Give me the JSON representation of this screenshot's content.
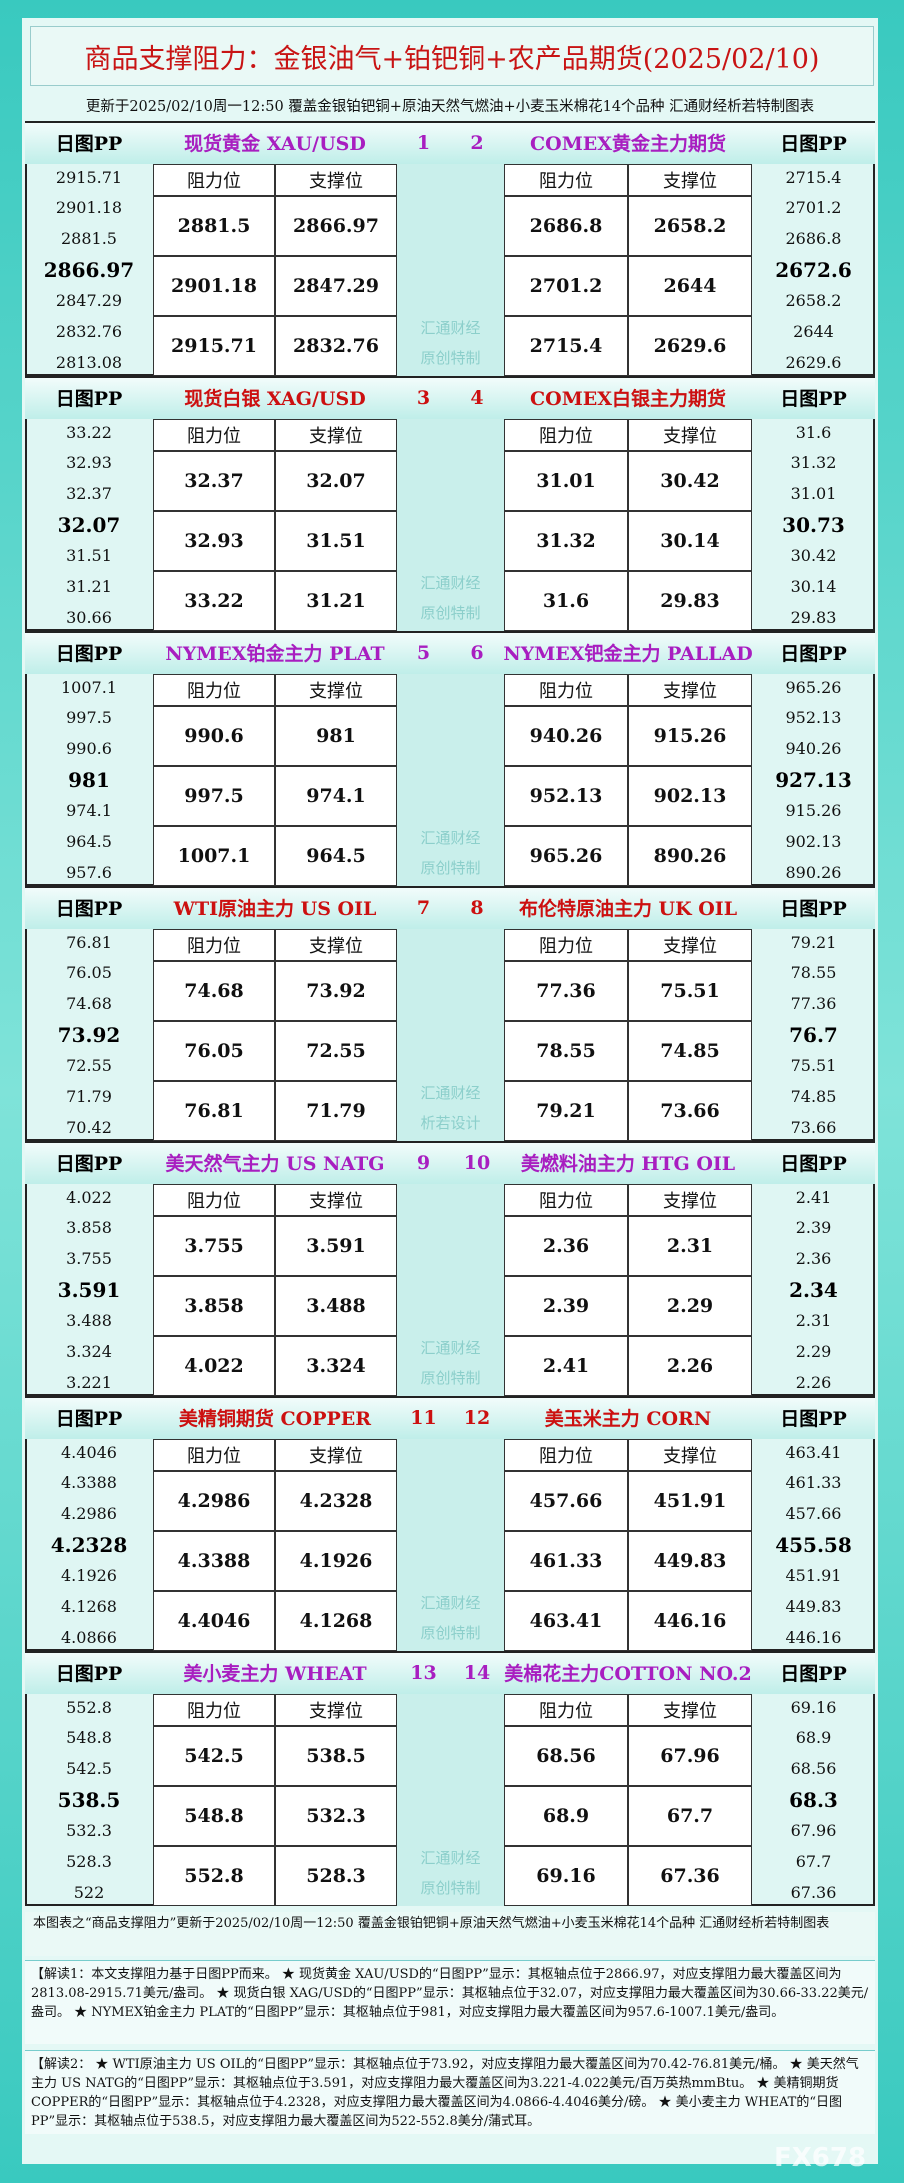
{
  "header": {
    "title": "商品支撑阻力：金银油气+铂钯铜+农产品期货(2025/02/10)",
    "subtitle": "更新于2025/02/10周一12:50 覆盖金银铂钯铜+原油天然气燃油+小麦玉米棉花14个品种 汇通财经析若特制图表"
  },
  "labels": {
    "pp": "日图PP",
    "resistance": "阻力位",
    "support": "支撑位"
  },
  "blocks": [
    {
      "color": "#a81ec0",
      "watermark": [
        "汇通财经",
        "原创特制"
      ],
      "left": {
        "name": "现货黄金 XAU/USD",
        "number": "1",
        "pp": [
          "2915.71",
          "2901.18",
          "2881.5",
          "2866.97",
          "2847.29",
          "2832.76",
          "2813.08"
        ],
        "rows": [
          [
            "2881.5",
            "2866.97"
          ],
          [
            "2901.18",
            "2847.29"
          ],
          [
            "2915.71",
            "2832.76"
          ]
        ]
      },
      "right": {
        "name": "COMEX黄金主力期货",
        "number": "2",
        "pp": [
          "2715.4",
          "2701.2",
          "2686.8",
          "2672.6",
          "2658.2",
          "2644",
          "2629.6"
        ],
        "rows": [
          [
            "2686.8",
            "2658.2"
          ],
          [
            "2701.2",
            "2644"
          ],
          [
            "2715.4",
            "2629.6"
          ]
        ]
      }
    },
    {
      "color": "#cc1010",
      "watermark": [
        "汇通财经",
        "原创特制"
      ],
      "left": {
        "name": "现货白银 XAG/USD",
        "number": "3",
        "pp": [
          "33.22",
          "32.93",
          "32.37",
          "32.07",
          "31.51",
          "31.21",
          "30.66"
        ],
        "rows": [
          [
            "32.37",
            "32.07"
          ],
          [
            "32.93",
            "31.51"
          ],
          [
            "33.22",
            "31.21"
          ]
        ]
      },
      "right": {
        "name": "COMEX白银主力期货",
        "number": "4",
        "pp": [
          "31.6",
          "31.32",
          "31.01",
          "30.73",
          "30.42",
          "30.14",
          "29.83"
        ],
        "rows": [
          [
            "31.01",
            "30.42"
          ],
          [
            "31.32",
            "30.14"
          ],
          [
            "31.6",
            "29.83"
          ]
        ]
      }
    },
    {
      "color": "#a81ec0",
      "watermark": [
        "汇通财经",
        "原创特制"
      ],
      "left": {
        "name": "NYMEX铂金主力 PLAT",
        "number": "5",
        "pp": [
          "1007.1",
          "997.5",
          "990.6",
          "981",
          "974.1",
          "964.5",
          "957.6"
        ],
        "rows": [
          [
            "990.6",
            "981"
          ],
          [
            "997.5",
            "974.1"
          ],
          [
            "1007.1",
            "964.5"
          ]
        ]
      },
      "right": {
        "name": "NYMEX钯金主力 PALLAD",
        "number": "6",
        "pp": [
          "965.26",
          "952.13",
          "940.26",
          "927.13",
          "915.26",
          "902.13",
          "890.26"
        ],
        "rows": [
          [
            "940.26",
            "915.26"
          ],
          [
            "952.13",
            "902.13"
          ],
          [
            "965.26",
            "890.26"
          ]
        ]
      }
    },
    {
      "color": "#cc1010",
      "watermark": [
        "汇通财经",
        "析若设计"
      ],
      "left": {
        "name": "WTI原油主力 US OIL",
        "number": "7",
        "pp": [
          "76.81",
          "76.05",
          "74.68",
          "73.92",
          "72.55",
          "71.79",
          "70.42"
        ],
        "rows": [
          [
            "74.68",
            "73.92"
          ],
          [
            "76.05",
            "72.55"
          ],
          [
            "76.81",
            "71.79"
          ]
        ]
      },
      "right": {
        "name": "布伦特原油主力 UK OIL",
        "number": "8",
        "pp": [
          "79.21",
          "78.55",
          "77.36",
          "76.7",
          "75.51",
          "74.85",
          "73.66"
        ],
        "rows": [
          [
            "77.36",
            "75.51"
          ],
          [
            "78.55",
            "74.85"
          ],
          [
            "79.21",
            "73.66"
          ]
        ]
      }
    },
    {
      "color": "#a81ec0",
      "watermark": [
        "汇通财经",
        "原创特制"
      ],
      "left": {
        "name": "美天然气主力 US NATG",
        "number": "9",
        "pp": [
          "4.022",
          "3.858",
          "3.755",
          "3.591",
          "3.488",
          "3.324",
          "3.221"
        ],
        "rows": [
          [
            "3.755",
            "3.591"
          ],
          [
            "3.858",
            "3.488"
          ],
          [
            "4.022",
            "3.324"
          ]
        ]
      },
      "right": {
        "name": "美燃料油主力 HTG OIL",
        "number": "10",
        "pp": [
          "2.41",
          "2.39",
          "2.36",
          "2.34",
          "2.31",
          "2.29",
          "2.26"
        ],
        "rows": [
          [
            "2.36",
            "2.31"
          ],
          [
            "2.39",
            "2.29"
          ],
          [
            "2.41",
            "2.26"
          ]
        ]
      }
    },
    {
      "color": "#cc1010",
      "watermark": [
        "汇通财经",
        "原创特制"
      ],
      "left": {
        "name": "美精铜期货 COPPER",
        "number": "11",
        "pp": [
          "4.4046",
          "4.3388",
          "4.2986",
          "4.2328",
          "4.1926",
          "4.1268",
          "4.0866"
        ],
        "rows": [
          [
            "4.2986",
            "4.2328"
          ],
          [
            "4.3388",
            "4.1926"
          ],
          [
            "4.4046",
            "4.1268"
          ]
        ]
      },
      "right": {
        "name": "美玉米主力 CORN",
        "number": "12",
        "pp": [
          "463.41",
          "461.33",
          "457.66",
          "455.58",
          "451.91",
          "449.83",
          "446.16"
        ],
        "rows": [
          [
            "457.66",
            "451.91"
          ],
          [
            "461.33",
            "449.83"
          ],
          [
            "463.41",
            "446.16"
          ]
        ]
      }
    },
    {
      "color": "#a81ec0",
      "watermark": [
        "汇通财经",
        "原创特制"
      ],
      "left": {
        "name": "美小麦主力 WHEAT",
        "number": "13",
        "pp": [
          "552.8",
          "548.8",
          "542.5",
          "538.5",
          "532.3",
          "528.3",
          "522"
        ],
        "rows": [
          [
            "542.5",
            "538.5"
          ],
          [
            "548.8",
            "532.3"
          ],
          [
            "552.8",
            "528.3"
          ]
        ]
      },
      "right": {
        "name": "美棉花主力COTTON NO.2",
        "number": "14",
        "pp": [
          "69.16",
          "68.9",
          "68.56",
          "68.3",
          "67.96",
          "67.7",
          "67.36"
        ],
        "rows": [
          [
            "68.56",
            "67.96"
          ],
          [
            "68.9",
            "67.7"
          ],
          [
            "69.16",
            "67.36"
          ]
        ]
      }
    }
  ],
  "footer": {
    "note": "本图表之“商品支撑阻力”更新于2025/02/10周一12:50 覆盖金银铂钯铜+原油天然气燃油+小麦玉米棉花14个品种 汇通财经析若特制图表",
    "analysis": [
      "【解读1：本文支撑阻力基于日图PP而来。 ★ 现货黄金 XAU/USD的“日图PP”显示：其枢轴点位于2866.97，对应支撑阻力最大覆盖区间为2813.08-2915.71美元/盎司。 ★ 现货白银 XAG/USD的“日图PP”显示：其枢轴点位于32.07，对应支撑阻力最大覆盖区间为30.66-33.22美元/盎司。 ★ NYMEX铂金主力 PLAT的“日图PP”显示：其枢轴点位于981，对应支撑阻力最大覆盖区间为957.6-1007.1美元/盎司。",
      "【解读2： ★ WTI原油主力 US OIL的“日图PP”显示：其枢轴点位于73.92，对应支撑阻力最大覆盖区间为70.42-76.81美元/桶。 ★ 美天然气主力 US NATG的“日图PP”显示：其枢轴点位于3.591，对应支撑阻力最大覆盖区间为3.221-4.022美元/百万英热mmBtu。 ★ 美精铜期货 COPPER的“日图PP”显示：其枢轴点位于4.2328，对应支撑阻力最大覆盖区间为4.0866-4.4046美分/磅。 ★ 美小麦主力 WHEAT的“日图PP”显示：其枢轴点位于538.5，对应支撑阻力最大覆盖区间为522-552.8美分/蒲式耳。"
    ]
  },
  "watermark": "FX678"
}
